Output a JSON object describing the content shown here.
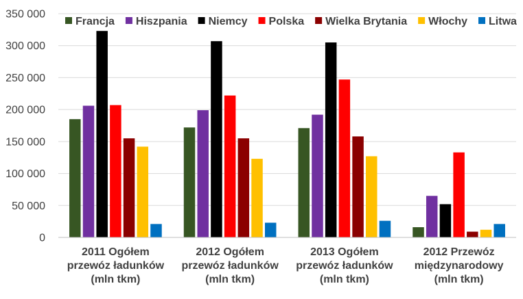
{
  "chart_data": {
    "type": "bar",
    "title": "",
    "xlabel": "",
    "ylabel": "",
    "ylim": [
      0,
      350000
    ],
    "yticks": [
      0,
      50000,
      100000,
      150000,
      200000,
      250000,
      300000,
      350000
    ],
    "ytick_labels": [
      "0",
      "50 000",
      "100 000",
      "150 000",
      "200 000",
      "250 000",
      "300 000",
      "350 000"
    ],
    "grid": true,
    "legend_position": "top",
    "categories": [
      [
        "2011 Ogółem",
        "przewóz ładunków",
        "(mln tkm)"
      ],
      [
        "2012 Ogółem",
        "przewóz ładunków",
        "(mln tkm)"
      ],
      [
        "2013 Ogółem",
        "przewóz ładunków",
        "(mln tkm)"
      ],
      [
        "2012 Przewóz",
        "międzynarodowy",
        "(mln tkm)"
      ]
    ],
    "series": [
      {
        "name": "Francja",
        "color": "#375623",
        "values": [
          185000,
          172000,
          171000,
          16000
        ]
      },
      {
        "name": "Hiszpania",
        "color": "#7030a0",
        "values": [
          206000,
          199000,
          192000,
          65000
        ]
      },
      {
        "name": "Niemcy",
        "color": "#000000",
        "values": [
          323000,
          307000,
          305000,
          52000
        ]
      },
      {
        "name": "Polska",
        "color": "#ff0000",
        "values": [
          207000,
          222000,
          247000,
          133000
        ]
      },
      {
        "name": "Wielka Brytania",
        "color": "#8b0000",
        "values": [
          155000,
          155000,
          158000,
          9000
        ]
      },
      {
        "name": "Włochy",
        "color": "#ffc000",
        "values": [
          142000,
          123000,
          127000,
          12000
        ]
      },
      {
        "name": "Litwa",
        "color": "#0070c0",
        "values": [
          21000,
          23000,
          26000,
          21000
        ]
      }
    ]
  }
}
